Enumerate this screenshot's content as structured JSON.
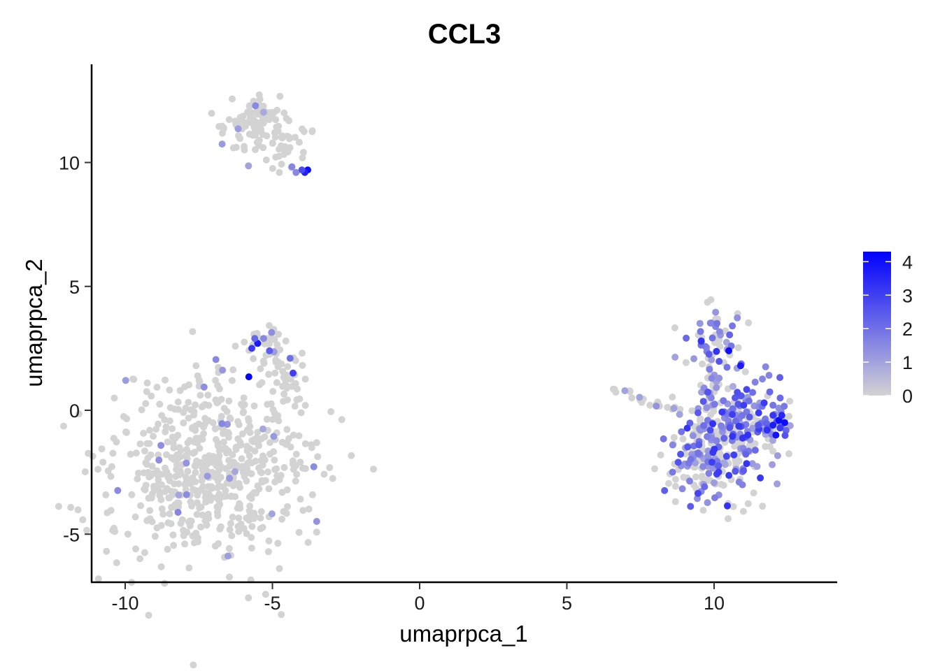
{
  "chart_data": {
    "type": "scatter",
    "title": "CCL3",
    "xlabel": "umaprpca_1",
    "ylabel": "umaprpca_2",
    "xlim": [
      -11.0,
      14.3
    ],
    "ylim": [
      -7.0,
      13.9
    ],
    "x_ticks": [
      -10,
      -5,
      0,
      5,
      10
    ],
    "y_ticks": [
      -5,
      0,
      5,
      10
    ],
    "x_tick_labels": [
      "-10",
      "-5",
      "0",
      "5",
      "10"
    ],
    "y_tick_labels": [
      "-5",
      "0",
      "5",
      "10"
    ],
    "grid": false,
    "legend_position": "right",
    "color_scale": {
      "low_color": "#d3d3d3",
      "high_color": "#0000ff",
      "min": 0,
      "max": 4.3,
      "ticks": [
        0,
        1,
        2,
        3,
        4
      ],
      "tick_labels": [
        "0",
        "1",
        "2",
        "3",
        "4"
      ]
    },
    "clusters": [
      {
        "cx": -7.2,
        "cy": -2.4,
        "sx": 1.7,
        "sy": 1.8,
        "n": 600
      },
      {
        "cx": -5.6,
        "cy": 11.6,
        "sx": 0.6,
        "sy": 0.6,
        "n": 100
      },
      {
        "cx": -4.6,
        "cy": 10.4,
        "sx": 0.4,
        "sy": 0.6,
        "n": 35
      },
      {
        "cx": -5.2,
        "cy": 2.6,
        "sx": 0.35,
        "sy": 0.45,
        "n": 30
      },
      {
        "cx": -4.6,
        "cy": 1.3,
        "sx": 0.35,
        "sy": 0.7,
        "n": 35
      },
      {
        "cx": 9.9,
        "cy": -1.8,
        "sx": 0.75,
        "sy": 1.1,
        "n": 230
      },
      {
        "cx": 11.0,
        "cy": -0.4,
        "sx": 0.8,
        "sy": 0.8,
        "n": 150
      },
      {
        "cx": 10.0,
        "cy": 2.5,
        "sx": 0.5,
        "sy": 0.9,
        "n": 70
      },
      {
        "cx": 12.1,
        "cy": -0.5,
        "sx": 0.3,
        "sy": 0.35,
        "n": 25
      }
    ],
    "stream": {
      "x1": 6.5,
      "y1": 0.9,
      "x2": 8.8,
      "y2": -0.1,
      "n": 20
    },
    "highlighted_points": [
      {
        "x": -3.8,
        "y": 9.7,
        "value": 4.0
      },
      {
        "x": -3.9,
        "y": 9.6,
        "value": 3.6
      },
      {
        "x": -4.0,
        "y": 9.7,
        "value": 2.8
      },
      {
        "x": -4.2,
        "y": 9.6,
        "value": 1.5
      },
      {
        "x": -5.5,
        "y": 2.7,
        "value": 3.8
      },
      {
        "x": -5.7,
        "y": 2.5,
        "value": 3.1
      },
      {
        "x": -5.3,
        "y": 2.9,
        "value": 1.5
      },
      {
        "x": -5.6,
        "y": 2.9,
        "value": 2.2
      },
      {
        "x": -5.1,
        "y": 2.4,
        "value": 2.4
      },
      {
        "x": -5.8,
        "y": 1.35,
        "value": 4.2
      },
      {
        "x": -4.3,
        "y": 1.5,
        "value": 3.0
      },
      {
        "x": -4.4,
        "y": 2.1,
        "value": 2.0
      },
      {
        "x": 10.5,
        "y": 2.4,
        "value": 4.0
      },
      {
        "x": 10.9,
        "y": 1.8,
        "value": 3.8
      },
      {
        "x": 12.2,
        "y": -0.4,
        "value": 4.1
      },
      {
        "x": 12.0,
        "y": -0.6,
        "value": 3.7
      },
      {
        "x": 12.3,
        "y": -0.2,
        "value": 3.5
      },
      {
        "x": 11.8,
        "y": -0.8,
        "value": 3.3
      },
      {
        "x": 12.1,
        "y": -1.0,
        "value": 3.9
      },
      {
        "x": 11.5,
        "y": -0.6,
        "value": 2.6
      },
      {
        "x": 11.7,
        "y": 0.3,
        "value": 3.1
      },
      {
        "x": 12.4,
        "y": -0.5,
        "value": 4.0
      },
      {
        "x": 12.0,
        "y": -0.2,
        "value": 3.2
      }
    ]
  }
}
